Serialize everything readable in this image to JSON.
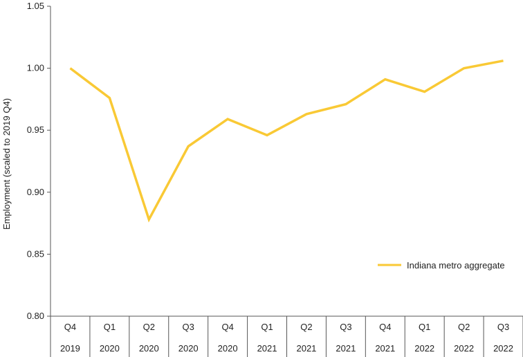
{
  "chart_data": {
    "type": "line",
    "ylabel": "Employment (scaled to 2019 Q4)",
    "ylim": [
      0.8,
      1.05
    ],
    "yticks": [
      "0.80",
      "0.85",
      "0.90",
      "0.95",
      "1.00",
      "1.05"
    ],
    "categories": [
      {
        "quarter": "Q4",
        "year": "2019"
      },
      {
        "quarter": "Q1",
        "year": "2020"
      },
      {
        "quarter": "Q2",
        "year": "2020"
      },
      {
        "quarter": "Q3",
        "year": "2020"
      },
      {
        "quarter": "Q4",
        "year": "2020"
      },
      {
        "quarter": "Q1",
        "year": "2021"
      },
      {
        "quarter": "Q2",
        "year": "2021"
      },
      {
        "quarter": "Q3",
        "year": "2021"
      },
      {
        "quarter": "Q4",
        "year": "2021"
      },
      {
        "quarter": "Q1",
        "year": "2022"
      },
      {
        "quarter": "Q2",
        "year": "2022"
      },
      {
        "quarter": "Q3",
        "year": "2022"
      }
    ],
    "series": [
      {
        "name": "Indiana metro aggregate",
        "color": "#F9C935",
        "values": [
          1.0,
          0.976,
          0.878,
          0.937,
          0.959,
          0.946,
          0.963,
          0.971,
          0.991,
          0.981,
          1.0,
          1.006
        ]
      }
    ],
    "legend_position": "bottom-right",
    "grid": false
  }
}
